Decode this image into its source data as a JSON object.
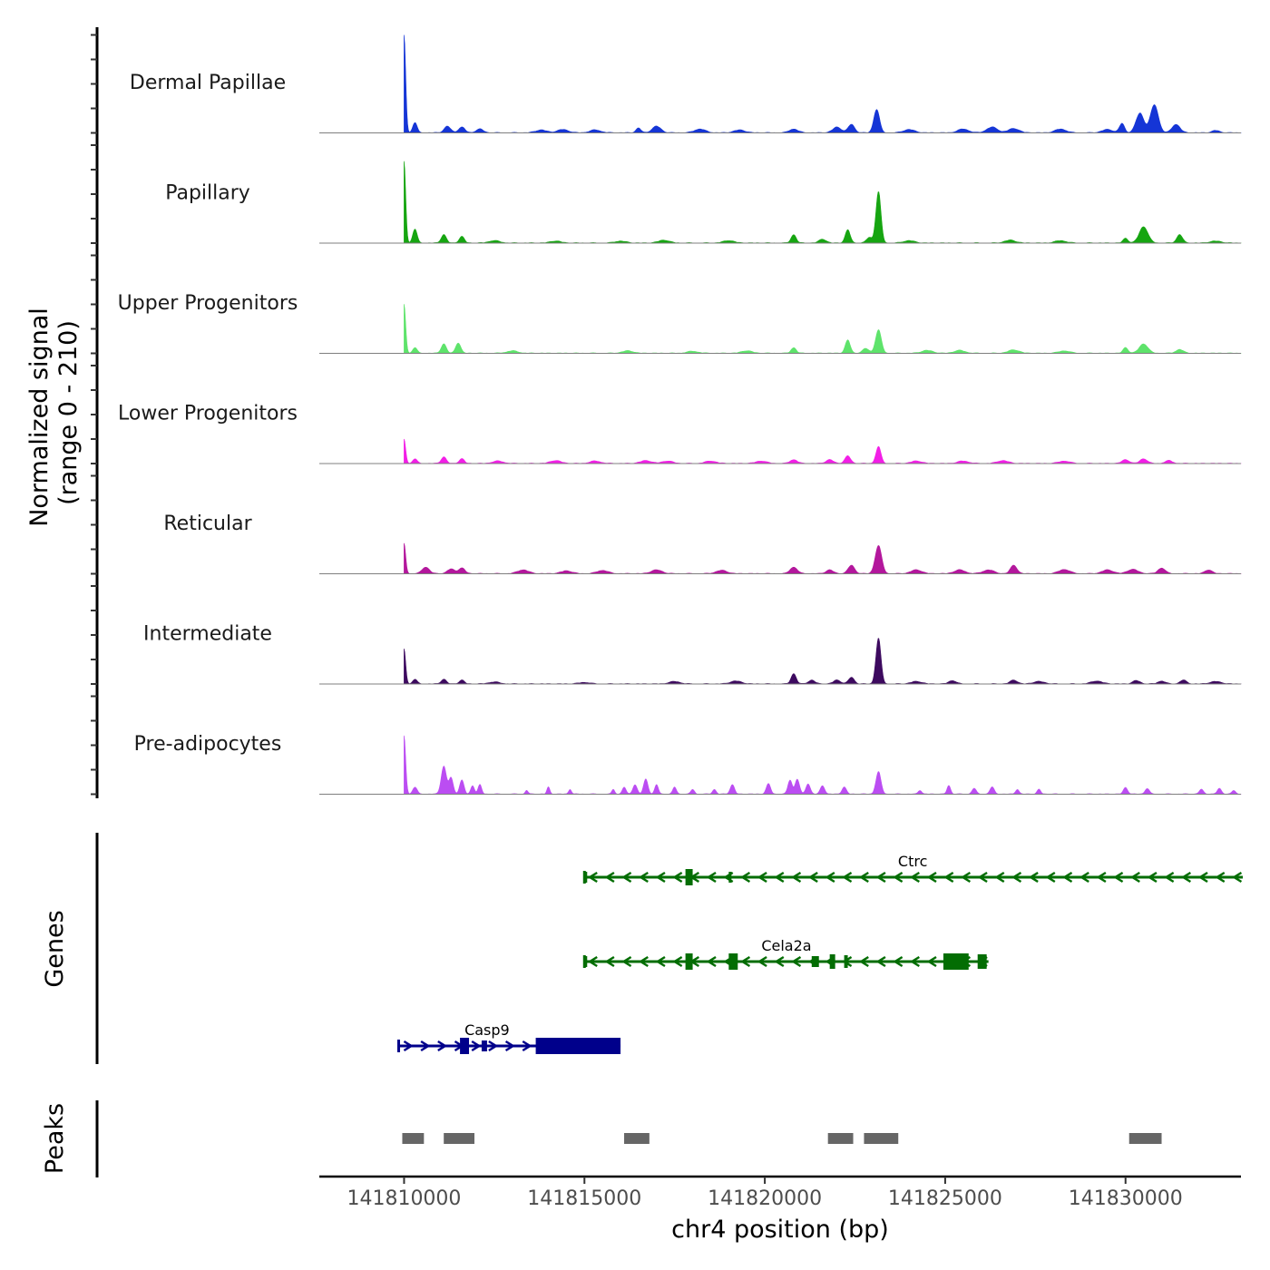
{
  "chart_data": {
    "type": "area",
    "title": "",
    "xlabel": "chr4 position (bp)",
    "ylabel_line1": "Normalized signal",
    "ylabel_line2": "(range 0 - 210)",
    "y_range": [
      0,
      210
    ],
    "xlim": [
      141807650,
      141833200
    ],
    "x_ticks": [
      {
        "value": 141810000,
        "label": "141810000"
      },
      {
        "value": 141815000,
        "label": "141815000"
      },
      {
        "value": 141820000,
        "label": "141820000"
      },
      {
        "value": 141825000,
        "label": "141825000"
      },
      {
        "value": 141830000,
        "label": "141830000"
      }
    ],
    "tracks": [
      {
        "name": "Dermal Papillae",
        "color": "#1535d6",
        "peaks": [
          [
            141810000,
            210,
            45
          ],
          [
            141810300,
            22,
            60
          ],
          [
            141811200,
            14,
            90
          ],
          [
            141811600,
            12,
            90
          ],
          [
            141812100,
            8,
            100
          ],
          [
            141813800,
            6,
            150
          ],
          [
            141814400,
            7,
            150
          ],
          [
            141815300,
            6,
            150
          ],
          [
            141816500,
            10,
            70
          ],
          [
            141817000,
            14,
            120
          ],
          [
            141818200,
            8,
            150
          ],
          [
            141819300,
            6,
            150
          ],
          [
            141820800,
            8,
            120
          ],
          [
            141822000,
            12,
            120
          ],
          [
            141822400,
            18,
            90
          ],
          [
            141823100,
            50,
            80
          ],
          [
            141824000,
            7,
            150
          ],
          [
            141825500,
            8,
            150
          ],
          [
            141826300,
            12,
            150
          ],
          [
            141826900,
            9,
            150
          ],
          [
            141828200,
            8,
            150
          ],
          [
            141829500,
            7,
            150
          ],
          [
            141829900,
            20,
            70
          ],
          [
            141830400,
            42,
            110
          ],
          [
            141830800,
            60,
            110
          ],
          [
            141831400,
            18,
            110
          ],
          [
            141832500,
            5,
            100
          ]
        ]
      },
      {
        "name": "Papillary",
        "color": "#16a511",
        "peaks": [
          [
            141810000,
            175,
            45
          ],
          [
            141810300,
            30,
            60
          ],
          [
            141811100,
            18,
            70
          ],
          [
            141811600,
            14,
            70
          ],
          [
            141812500,
            5,
            150
          ],
          [
            141814200,
            4,
            150
          ],
          [
            141816000,
            4,
            150
          ],
          [
            141817200,
            6,
            150
          ],
          [
            141819000,
            5,
            150
          ],
          [
            141820800,
            18,
            70
          ],
          [
            141821600,
            8,
            100
          ],
          [
            141822300,
            28,
            70
          ],
          [
            141822900,
            12,
            80
          ],
          [
            141823150,
            110,
            70
          ],
          [
            141824000,
            5,
            150
          ],
          [
            141826800,
            6,
            150
          ],
          [
            141828200,
            5,
            150
          ],
          [
            141830000,
            10,
            70
          ],
          [
            141830500,
            35,
            120
          ],
          [
            141831500,
            18,
            80
          ],
          [
            141832500,
            4,
            150
          ]
        ]
      },
      {
        "name": "Upper Progenitors",
        "color": "#5ee36b",
        "peaks": [
          [
            141810000,
            105,
            45
          ],
          [
            141810300,
            12,
            60
          ],
          [
            141811100,
            20,
            70
          ],
          [
            141811500,
            22,
            70
          ],
          [
            141813000,
            5,
            150
          ],
          [
            141816200,
            5,
            150
          ],
          [
            141818000,
            4,
            150
          ],
          [
            141819500,
            5,
            150
          ],
          [
            141820800,
            12,
            70
          ],
          [
            141822300,
            28,
            70
          ],
          [
            141822800,
            10,
            90
          ],
          [
            141823150,
            50,
            80
          ],
          [
            141824500,
            6,
            150
          ],
          [
            141825400,
            6,
            150
          ],
          [
            141826900,
            7,
            150
          ],
          [
            141828300,
            5,
            150
          ],
          [
            141830000,
            12,
            70
          ],
          [
            141830500,
            20,
            120
          ],
          [
            141831500,
            8,
            100
          ]
        ]
      },
      {
        "name": "Lower Progenitors",
        "color": "#f21ee6",
        "peaks": [
          [
            141810000,
            52,
            45
          ],
          [
            141810300,
            10,
            60
          ],
          [
            141811100,
            14,
            70
          ],
          [
            141811600,
            10,
            70
          ],
          [
            141812600,
            5,
            150
          ],
          [
            141814200,
            6,
            150
          ],
          [
            141815300,
            5,
            150
          ],
          [
            141816700,
            6,
            150
          ],
          [
            141817300,
            5,
            150
          ],
          [
            141818500,
            5,
            150
          ],
          [
            141819900,
            5,
            150
          ],
          [
            141820800,
            8,
            100
          ],
          [
            141821800,
            8,
            100
          ],
          [
            141822300,
            16,
            80
          ],
          [
            141823150,
            36,
            70
          ],
          [
            141824200,
            5,
            150
          ],
          [
            141825500,
            5,
            150
          ],
          [
            141826600,
            6,
            150
          ],
          [
            141828300,
            5,
            150
          ],
          [
            141830000,
            8,
            100
          ],
          [
            141830500,
            10,
            100
          ],
          [
            141831200,
            6,
            100
          ]
        ]
      },
      {
        "name": "Reticular",
        "color": "#b3179c",
        "peaks": [
          [
            141810000,
            65,
            45
          ],
          [
            141810600,
            14,
            100
          ],
          [
            141811300,
            10,
            100
          ],
          [
            141811600,
            12,
            90
          ],
          [
            141813300,
            8,
            150
          ],
          [
            141814500,
            6,
            150
          ],
          [
            141815500,
            7,
            150
          ],
          [
            141817000,
            8,
            150
          ],
          [
            141818800,
            7,
            150
          ],
          [
            141820800,
            14,
            100
          ],
          [
            141821800,
            8,
            100
          ],
          [
            141822400,
            18,
            90
          ],
          [
            141823150,
            60,
            90
          ],
          [
            141824200,
            8,
            150
          ],
          [
            141825400,
            8,
            150
          ],
          [
            141826200,
            8,
            150
          ],
          [
            141826900,
            18,
            90
          ],
          [
            141828300,
            9,
            150
          ],
          [
            141829500,
            8,
            150
          ],
          [
            141830200,
            9,
            150
          ],
          [
            141831000,
            12,
            100
          ],
          [
            141832300,
            8,
            100
          ]
        ]
      },
      {
        "name": "Intermediate",
        "color": "#3d0a5f",
        "peaks": [
          [
            141810000,
            75,
            45
          ],
          [
            141810300,
            10,
            60
          ],
          [
            141811100,
            10,
            70
          ],
          [
            141811600,
            8,
            70
          ],
          [
            141812500,
            4,
            150
          ],
          [
            141815000,
            3,
            150
          ],
          [
            141817500,
            5,
            150
          ],
          [
            141819200,
            6,
            150
          ],
          [
            141820800,
            22,
            70
          ],
          [
            141821300,
            8,
            90
          ],
          [
            141822000,
            8,
            100
          ],
          [
            141822400,
            14,
            80
          ],
          [
            141823150,
            98,
            70
          ],
          [
            141824200,
            5,
            150
          ],
          [
            141825200,
            7,
            100
          ],
          [
            141826900,
            8,
            100
          ],
          [
            141827600,
            5,
            150
          ],
          [
            141829200,
            6,
            150
          ],
          [
            141830300,
            7,
            100
          ],
          [
            141831000,
            6,
            100
          ],
          [
            141831600,
            8,
            90
          ],
          [
            141832500,
            5,
            150
          ]
        ]
      },
      {
        "name": "Pre-adipocytes",
        "color": "#bb4df2",
        "peaks": [
          [
            141810000,
            125,
            45
          ],
          [
            141810300,
            15,
            60
          ],
          [
            141811100,
            60,
            70
          ],
          [
            141811300,
            35,
            60
          ],
          [
            141811600,
            30,
            60
          ],
          [
            141811900,
            18,
            50
          ],
          [
            141812100,
            20,
            50
          ],
          [
            141813400,
            8,
            40
          ],
          [
            141814000,
            15,
            40
          ],
          [
            141814600,
            10,
            40
          ],
          [
            141815800,
            10,
            40
          ],
          [
            141816100,
            15,
            50
          ],
          [
            141816400,
            20,
            60
          ],
          [
            141816700,
            32,
            60
          ],
          [
            141817000,
            20,
            50
          ],
          [
            141817500,
            15,
            50
          ],
          [
            141818000,
            10,
            50
          ],
          [
            141818600,
            10,
            50
          ],
          [
            141819100,
            20,
            60
          ],
          [
            141820100,
            22,
            60
          ],
          [
            141820700,
            30,
            60
          ],
          [
            141820900,
            32,
            60
          ],
          [
            141821200,
            22,
            60
          ],
          [
            141821600,
            18,
            60
          ],
          [
            141822200,
            15,
            60
          ],
          [
            141823150,
            48,
            70
          ],
          [
            141824300,
            8,
            50
          ],
          [
            141825100,
            18,
            50
          ],
          [
            141825800,
            12,
            60
          ],
          [
            141826300,
            15,
            60
          ],
          [
            141827000,
            10,
            50
          ],
          [
            141827600,
            10,
            50
          ],
          [
            141830000,
            14,
            60
          ],
          [
            141830600,
            12,
            60
          ],
          [
            141832100,
            10,
            60
          ],
          [
            141832600,
            12,
            60
          ],
          [
            141833000,
            8,
            50
          ]
        ]
      }
    ],
    "genes_label": "Genes",
    "genes": [
      {
        "name": "Ctrc",
        "color": "#036d03",
        "strand": "-",
        "row": 0,
        "start": 141815000,
        "end": 141833250,
        "label_pos": 141824100,
        "exons": [
          [
            141815000,
            141815060,
            12
          ],
          [
            141817800,
            141818000,
            18
          ],
          [
            141819000,
            141819060,
            12
          ]
        ]
      },
      {
        "name": "Cela2a",
        "color": "#036d03",
        "strand": "-",
        "row": 1,
        "start": 141815000,
        "end": 141826200,
        "label_pos": 141820600,
        "exons": [
          [
            141815000,
            141815060,
            12
          ],
          [
            141817800,
            141818000,
            18
          ],
          [
            141819000,
            141819250,
            18
          ],
          [
            141821300,
            141821500,
            12
          ],
          [
            141821800,
            141821950,
            16
          ],
          [
            141822200,
            141822300,
            14
          ],
          [
            141824950,
            141825650,
            18
          ],
          [
            141825900,
            141826150,
            16
          ]
        ]
      },
      {
        "name": "Casp9",
        "color": "#00008b",
        "strand": "+",
        "row": 2,
        "start": 141809850,
        "end": 141816000,
        "label_pos": 141812300,
        "exons": [
          [
            141811550,
            141811800,
            18
          ],
          [
            141812150,
            141812300,
            12
          ],
          [
            141813650,
            141816000,
            18
          ]
        ]
      }
    ],
    "peaks_label": "Peaks",
    "peak_regions": [
      [
        141809950,
        141810550
      ],
      [
        141811100,
        141811950
      ],
      [
        141816100,
        141816800
      ],
      [
        141821750,
        141822450
      ],
      [
        141822750,
        141823700
      ],
      [
        141830100,
        141831000
      ]
    ]
  }
}
